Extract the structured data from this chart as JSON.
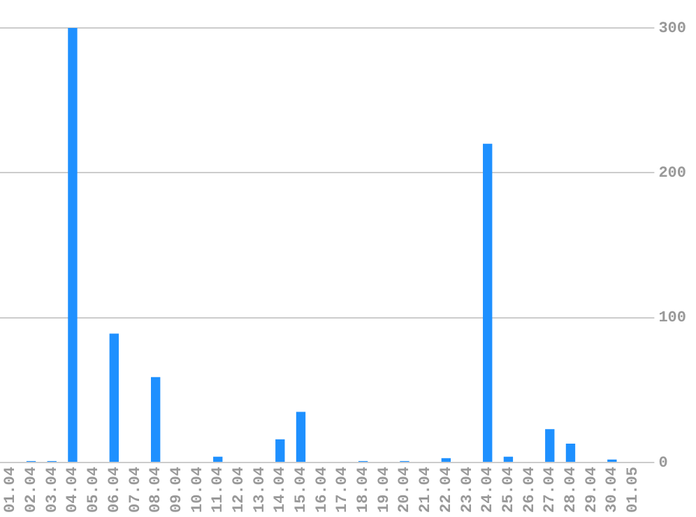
{
  "chart_data": {
    "type": "bar",
    "categories": [
      "01.04",
      "02.04",
      "03.04",
      "04.04",
      "05.04",
      "06.04",
      "07.04",
      "08.04",
      "09.04",
      "10.04",
      "11.04",
      "12.04",
      "13.04",
      "14.04",
      "15.04",
      "16.04",
      "17.04",
      "18.04",
      "19.04",
      "20.04",
      "21.04",
      "22.04",
      "23.04",
      "24.04",
      "25.04",
      "26.04",
      "27.04",
      "28.04",
      "29.04",
      "30.04",
      "01.05"
    ],
    "values": [
      0,
      1,
      1,
      300,
      0,
      89,
      0,
      59,
      0,
      0,
      4,
      0,
      0,
      16,
      35,
      0,
      0,
      1,
      0,
      1,
      0,
      3,
      0,
      220,
      4,
      0,
      23,
      13,
      0,
      2,
      0
    ],
    "color": "#1e90ff",
    "ylim": [
      0,
      300
    ],
    "yticks": [
      0,
      100,
      200,
      300
    ],
    "grid": "y",
    "legend": false
  }
}
